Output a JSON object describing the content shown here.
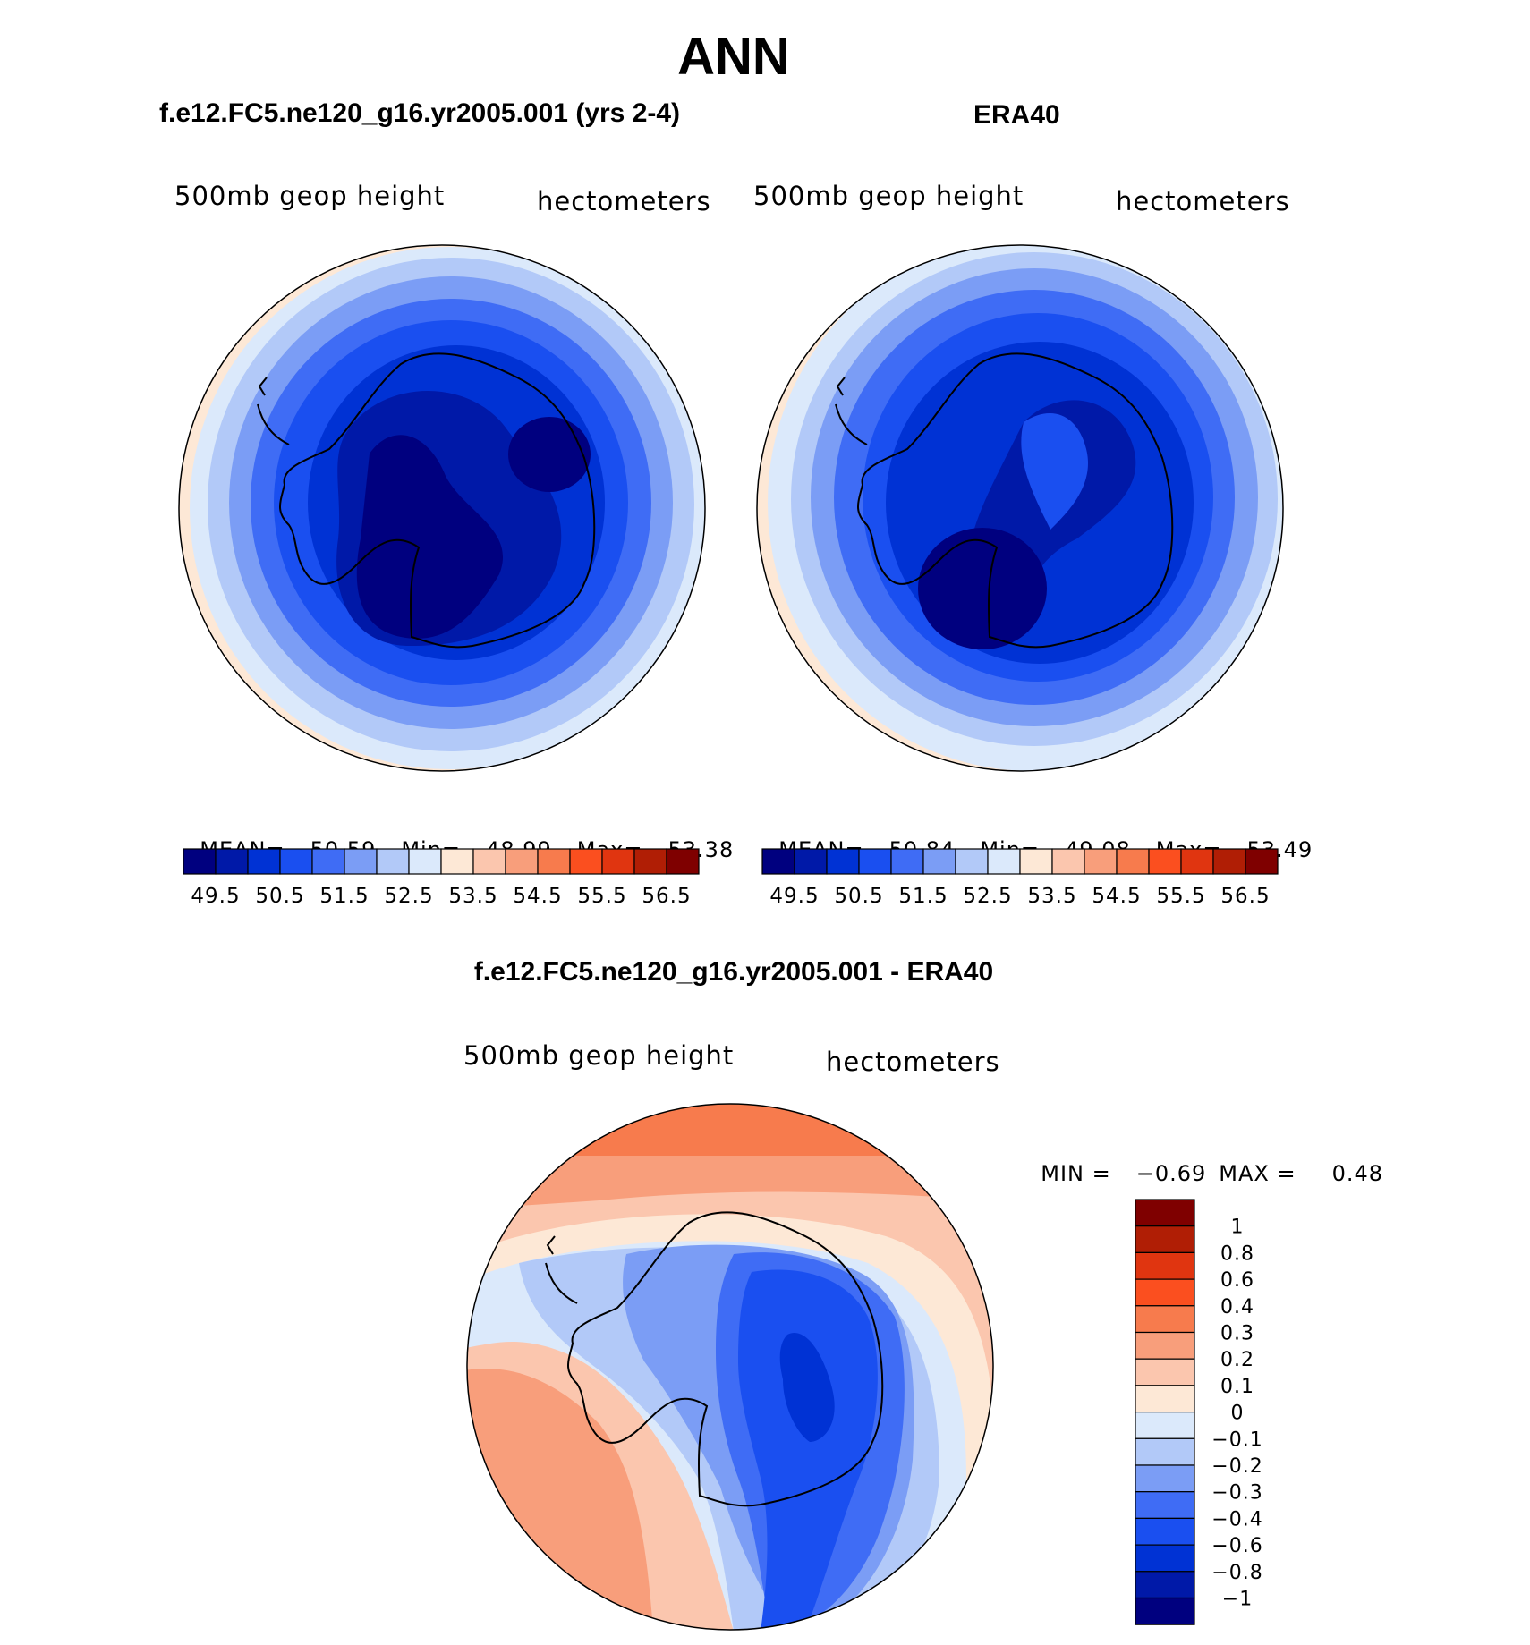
{
  "title": "ANN",
  "panels": [
    {
      "id": "model",
      "title": "f.e12.FC5.ne120_g16.yr2005.001 (yrs 2-4)",
      "variable": "500mb geop height",
      "units": "hectometers",
      "stats": {
        "mean_label": "MEAN=",
        "mean": "50.59",
        "min_label": "Min=",
        "min": "48.99",
        "max_label": "Max=",
        "max": "53.38"
      }
    },
    {
      "id": "obs",
      "title": "ERA40",
      "variable": "500mb geop height",
      "units": "hectometers",
      "stats": {
        "mean_label": "MEAN=",
        "mean": "50.84",
        "min_label": "Min=",
        "min": "49.08",
        "max_label": "Max=",
        "max": "53.49"
      }
    },
    {
      "id": "diff",
      "title": "f.e12.FC5.ne120_g16.yr2005.001 - ERA40",
      "variable": "500mb geop height",
      "units": "hectometers",
      "stats": {
        "min_label": "MIN =",
        "min": "−0.69",
        "max_label": "MAX =",
        "max": "0.48"
      }
    }
  ],
  "colorbar_field": {
    "labels": [
      "49.5",
      "50.5",
      "51.5",
      "52.5",
      "53.5",
      "54.5",
      "55.5",
      "56.5"
    ],
    "colors": [
      "#00007f",
      "#0019a8",
      "#0032d4",
      "#1a4ff0",
      "#3f6cf5",
      "#7b9df5",
      "#b2c9f8",
      "#dbe9fb",
      "#fde8d6",
      "#fbc6ae",
      "#f89e7b",
      "#f77b4d",
      "#fb4f1f",
      "#e03510",
      "#b01e05",
      "#7f0000"
    ]
  },
  "colorbar_diff": {
    "labels": [
      "1",
      "0.8",
      "0.6",
      "0.4",
      "0.3",
      "0.2",
      "0.1",
      "0",
      "−0.1",
      "−0.2",
      "−0.3",
      "−0.4",
      "−0.6",
      "−0.8",
      "−1"
    ],
    "colors": [
      "#7f0000",
      "#b01e05",
      "#e03510",
      "#fb4f1f",
      "#f77b4d",
      "#f89e7b",
      "#fbc6ae",
      "#fde8d6",
      "#dbe9fb",
      "#b2c9f8",
      "#7b9df5",
      "#3f6cf5",
      "#1a4ff0",
      "#0032d4",
      "#0019a8",
      "#00007f"
    ]
  }
}
